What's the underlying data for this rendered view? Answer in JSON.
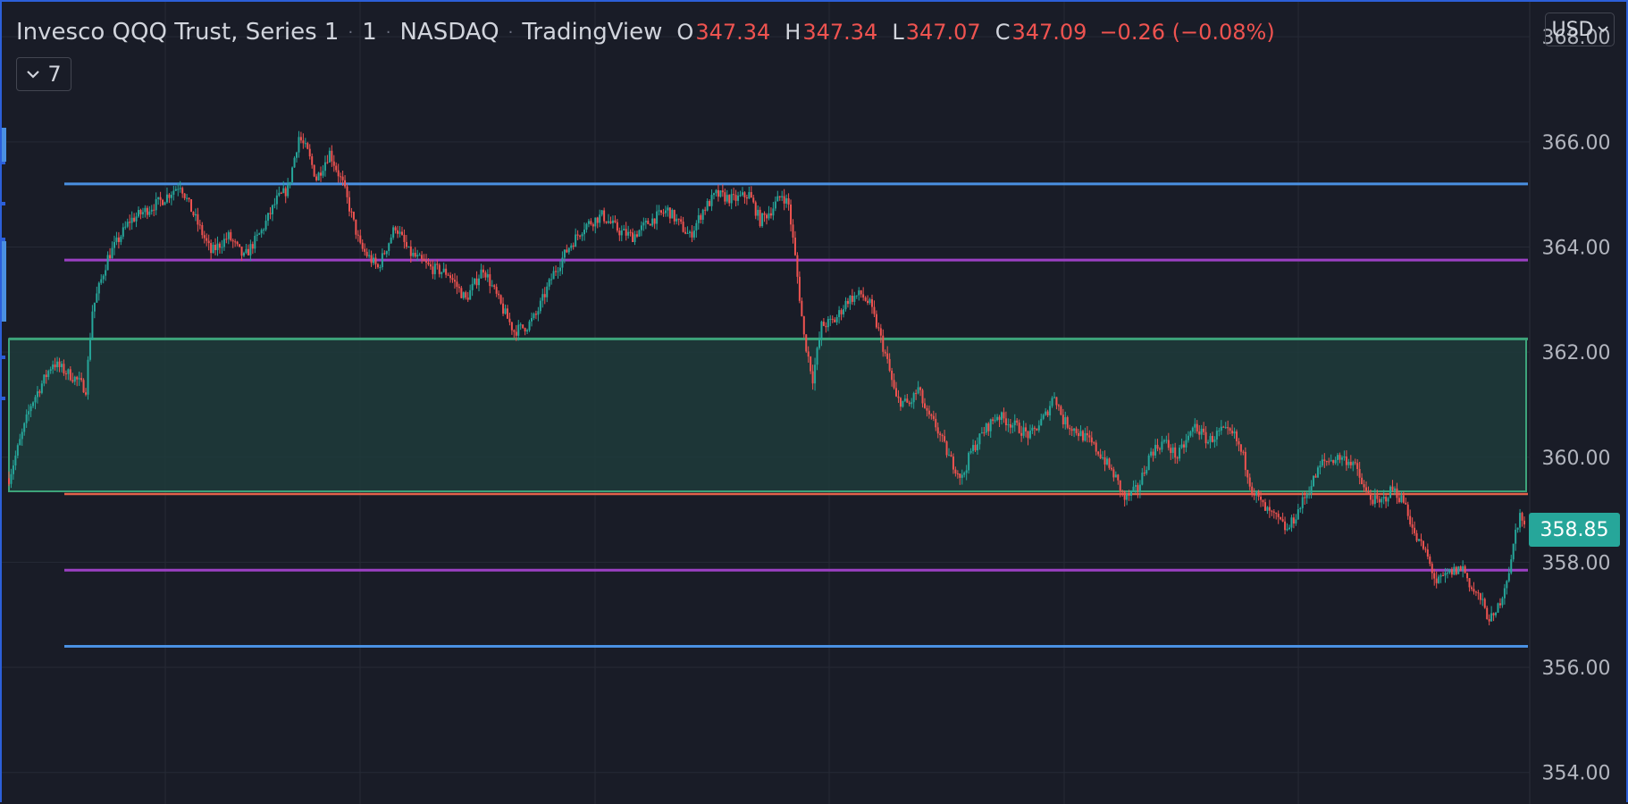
{
  "header": {
    "symbol": "Invesco QQQ Trust, Series 1",
    "interval": "1",
    "exchange": "NASDAQ",
    "source": "TradingView",
    "open_label": "O",
    "open": "347.34",
    "high_label": "H",
    "high": "347.34",
    "low_label": "L",
    "low": "347.07",
    "close_label": "C",
    "close": "347.09",
    "change": "−0.26 (−0.08%)"
  },
  "indicators_toggle": {
    "icon": "chevron-down-icon",
    "count": "7"
  },
  "currency": {
    "label": "USD",
    "icon": "chevron-down-icon"
  },
  "last_price": "358.85",
  "colors": {
    "background": "#191c27",
    "up": "#26a69a",
    "down": "#ef5350",
    "level_blue": "#4a90e2",
    "level_purple": "#9c40c4",
    "zone_fill": "#1f3b3b",
    "zone_border": "#3da37a",
    "zone_bottom": "#e2624b"
  },
  "chart_data": {
    "type": "candlestick",
    "y_axis": {
      "side": "right",
      "range": [
        353.4,
        368.7
      ],
      "ticks": [
        "368.00",
        "366.00",
        "364.00",
        "362.00",
        "360.00",
        "358.00",
        "356.00",
        "354.00"
      ]
    },
    "grid": true,
    "horizontal_levels": [
      {
        "price": 365.2,
        "color": "#4a90e2"
      },
      {
        "price": 363.75,
        "color": "#9c40c4"
      },
      {
        "price": 357.85,
        "color": "#9c40c4"
      },
      {
        "price": 356.4,
        "color": "#4a90e2"
      }
    ],
    "zone": {
      "top": 362.25,
      "bottom": 359.35
    },
    "waypoints": [
      [
        0,
        359.6
      ],
      [
        10,
        361.0
      ],
      [
        20,
        361.8
      ],
      [
        30,
        361.5
      ],
      [
        35,
        361.3
      ],
      [
        38,
        362.8
      ],
      [
        45,
        363.8
      ],
      [
        55,
        364.5
      ],
      [
        70,
        364.9
      ],
      [
        78,
        365.2
      ],
      [
        82,
        364.8
      ],
      [
        92,
        363.9
      ],
      [
        100,
        364.2
      ],
      [
        107,
        363.8
      ],
      [
        115,
        364.3
      ],
      [
        122,
        364.9
      ],
      [
        127,
        365.1
      ],
      [
        132,
        366.1
      ],
      [
        136,
        365.8
      ],
      [
        140,
        365.3
      ],
      [
        146,
        365.8
      ],
      [
        152,
        365.2
      ],
      [
        160,
        364.0
      ],
      [
        168,
        363.6
      ],
      [
        176,
        364.4
      ],
      [
        182,
        363.9
      ],
      [
        192,
        363.6
      ],
      [
        200,
        363.5
      ],
      [
        208,
        363.0
      ],
      [
        216,
        363.6
      ],
      [
        225,
        362.8
      ],
      [
        230,
        362.4
      ],
      [
        236,
        362.5
      ],
      [
        240,
        362.7
      ],
      [
        248,
        363.5
      ],
      [
        255,
        364.0
      ],
      [
        262,
        364.4
      ],
      [
        270,
        364.6
      ],
      [
        278,
        364.3
      ],
      [
        284,
        364.2
      ],
      [
        292,
        364.5
      ],
      [
        300,
        364.7
      ],
      [
        310,
        364.2
      ],
      [
        316,
        364.7
      ],
      [
        322,
        365.0
      ],
      [
        330,
        364.9
      ],
      [
        337,
        365.0
      ],
      [
        342,
        364.5
      ],
      [
        347,
        364.7
      ],
      [
        352,
        365.0
      ],
      [
        355,
        364.8
      ],
      [
        358,
        363.8
      ],
      [
        362,
        362.3
      ],
      [
        366,
        361.5
      ],
      [
        370,
        362.5
      ],
      [
        376,
        362.6
      ],
      [
        382,
        363.0
      ],
      [
        388,
        363.1
      ],
      [
        392,
        362.9
      ],
      [
        396,
        362.4
      ],
      [
        400,
        361.8
      ],
      [
        404,
        361.1
      ],
      [
        410,
        361.0
      ],
      [
        414,
        361.3
      ],
      [
        418,
        360.8
      ],
      [
        422,
        360.6
      ],
      [
        428,
        360.0
      ],
      [
        434,
        359.6
      ],
      [
        438,
        360.1
      ],
      [
        444,
        360.5
      ],
      [
        450,
        360.8
      ],
      [
        458,
        360.6
      ],
      [
        465,
        360.4
      ],
      [
        472,
        360.8
      ],
      [
        476,
        361.2
      ],
      [
        480,
        360.7
      ],
      [
        486,
        360.5
      ],
      [
        492,
        360.3
      ],
      [
        498,
        360.0
      ],
      [
        504,
        359.6
      ],
      [
        508,
        359.2
      ],
      [
        514,
        359.4
      ],
      [
        520,
        360.1
      ],
      [
        526,
        360.3
      ],
      [
        532,
        360.0
      ],
      [
        536,
        360.3
      ],
      [
        540,
        360.6
      ],
      [
        546,
        360.3
      ],
      [
        552,
        360.5
      ],
      [
        558,
        360.4
      ],
      [
        562,
        360.0
      ],
      [
        566,
        359.4
      ],
      [
        572,
        359.0
      ],
      [
        578,
        358.8
      ],
      [
        582,
        358.6
      ],
      [
        586,
        358.9
      ],
      [
        592,
        359.4
      ],
      [
        598,
        359.9
      ],
      [
        606,
        360.0
      ],
      [
        612,
        359.9
      ],
      [
        618,
        359.3
      ],
      [
        624,
        359.1
      ],
      [
        630,
        359.4
      ],
      [
        636,
        359.1
      ],
      [
        640,
        358.5
      ],
      [
        645,
        358.2
      ],
      [
        650,
        357.6
      ],
      [
        656,
        357.8
      ],
      [
        662,
        357.9
      ],
      [
        666,
        357.5
      ],
      [
        670,
        357.3
      ],
      [
        673,
        357.0
      ],
      [
        676,
        356.9
      ],
      [
        680,
        357.4
      ],
      [
        684,
        358.0
      ],
      [
        686,
        358.6
      ],
      [
        688,
        358.9
      ],
      [
        690,
        358.7
      ]
    ],
    "total_bars": 690
  }
}
